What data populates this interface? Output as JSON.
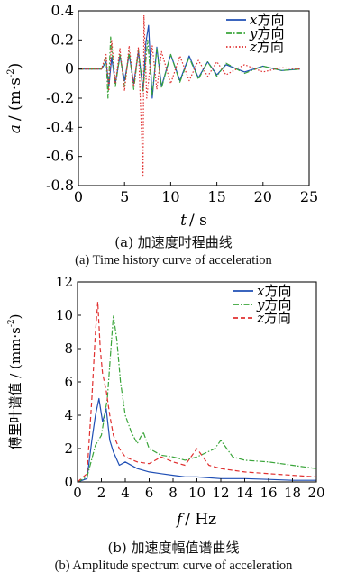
{
  "chart_data": [
    {
      "type": "line",
      "caption_cn": "(a)  加速度时程曲线",
      "caption_en": "(a)  Time history curve of acceleration",
      "xlabel_var": "t",
      "xlabel_unit": "/ s",
      "ylabel_var": "a",
      "ylabel_unit": "/ (m·s",
      "ylabel_exp": "-2",
      "xlim": [
        0,
        25
      ],
      "ylim": [
        -0.8,
        0.4
      ],
      "xticks": [
        "0",
        "5",
        "10",
        "15",
        "20",
        "25"
      ],
      "yticks": [
        "0.4",
        "0.2",
        "0",
        "-0.2",
        "-0.4",
        "-0.6",
        "-0.8"
      ],
      "legend_position": "top-right",
      "series": [
        {
          "name": "x",
          "suffix": "方向",
          "color": "#1f4fb5",
          "dash": "solid",
          "values": [
            [
              0,
              0
            ],
            [
              2.5,
              0
            ],
            [
              3,
              0.05
            ],
            [
              3.3,
              -0.12
            ],
            [
              3.6,
              0.08
            ],
            [
              4,
              -0.1
            ],
            [
              4.5,
              0.09
            ],
            [
              5,
              -0.08
            ],
            [
              5.5,
              0.1
            ],
            [
              6,
              -0.1
            ],
            [
              6.5,
              0.12
            ],
            [
              7,
              -0.15
            ],
            [
              7.3,
              0.18
            ],
            [
              7.6,
              0.3
            ],
            [
              8,
              -0.2
            ],
            [
              8.5,
              0.15
            ],
            [
              9,
              -0.12
            ],
            [
              10,
              0.1
            ],
            [
              11,
              -0.08
            ],
            [
              12,
              0.09
            ],
            [
              13,
              -0.06
            ],
            [
              14,
              0.05
            ],
            [
              15,
              -0.04
            ],
            [
              16,
              0.03
            ],
            [
              18,
              -0.02
            ],
            [
              20,
              0.02
            ],
            [
              22,
              -0.01
            ],
            [
              24,
              0
            ]
          ]
        },
        {
          "name": "y",
          "suffix": "方向",
          "color": "#3aa53a",
          "dash": "dashdot",
          "values": [
            [
              0,
              0
            ],
            [
              2.5,
              0
            ],
            [
              3,
              0.08
            ],
            [
              3.2,
              -0.2
            ],
            [
              3.5,
              0.22
            ],
            [
              4,
              -0.12
            ],
            [
              4.5,
              0.1
            ],
            [
              5,
              -0.12
            ],
            [
              5.5,
              0.12
            ],
            [
              6,
              -0.14
            ],
            [
              6.5,
              0.13
            ],
            [
              7,
              -0.15
            ],
            [
              7.5,
              0.2
            ],
            [
              8,
              -0.18
            ],
            [
              8.5,
              0.14
            ],
            [
              9,
              -0.13
            ],
            [
              10,
              0.1
            ],
            [
              11,
              -0.09
            ],
            [
              12,
              0.08
            ],
            [
              13,
              -0.07
            ],
            [
              14,
              0.05
            ],
            [
              15,
              -0.05
            ],
            [
              16,
              0.04
            ],
            [
              18,
              -0.03
            ],
            [
              20,
              0.02
            ],
            [
              22,
              -0.01
            ],
            [
              24,
              0
            ]
          ]
        },
        {
          "name": "z",
          "suffix": "方向",
          "color": "#e03030",
          "dash": "dotted",
          "values": [
            [
              0,
              0
            ],
            [
              2.5,
              0
            ],
            [
              3,
              0.1
            ],
            [
              3.3,
              -0.15
            ],
            [
              3.6,
              0.2
            ],
            [
              4,
              -0.1
            ],
            [
              4.5,
              0.14
            ],
            [
              5,
              -0.15
            ],
            [
              5.5,
              0.16
            ],
            [
              6,
              -0.12
            ],
            [
              6.5,
              0.15
            ],
            [
              7,
              -0.73
            ],
            [
              7.1,
              0.37
            ],
            [
              7.4,
              -0.2
            ],
            [
              8,
              0.16
            ],
            [
              8.5,
              -0.14
            ],
            [
              9,
              0.12
            ],
            [
              10,
              -0.1
            ],
            [
              11,
              0.09
            ],
            [
              12,
              -0.08
            ],
            [
              13,
              0.06
            ],
            [
              14,
              -0.05
            ],
            [
              15,
              0.05
            ],
            [
              16,
              -0.04
            ],
            [
              18,
              0.03
            ],
            [
              20,
              -0.02
            ],
            [
              22,
              0.01
            ],
            [
              24,
              0
            ]
          ]
        }
      ]
    },
    {
      "type": "line",
      "caption_cn": "(b)  加速度幅值谱曲线",
      "caption_en": "(b)  Amplitude spectrum curve of acceleration",
      "xlabel_var": "f",
      "xlabel_unit": "/ Hz",
      "ylabel_text": "傅里叶谱值 / (mm·s",
      "ylabel_exp": "-2",
      "ylabel_close": ")",
      "xlim": [
        0,
        20
      ],
      "ylim": [
        0,
        12
      ],
      "xticks": [
        "0",
        "2",
        "4",
        "6",
        "8",
        "10",
        "12",
        "14",
        "16",
        "18",
        "20"
      ],
      "yticks": [
        "12",
        "10",
        "8",
        "6",
        "4",
        "2",
        "0"
      ],
      "legend_position": "top-right",
      "series": [
        {
          "name": "x",
          "suffix": "方向",
          "color": "#1f4fb5",
          "dash": "solid",
          "values": [
            [
              0,
              0
            ],
            [
              0.8,
              0.2
            ],
            [
              1.2,
              2.5
            ],
            [
              1.5,
              4
            ],
            [
              1.8,
              5
            ],
            [
              2.1,
              3.6
            ],
            [
              2.4,
              4.4
            ],
            [
              2.7,
              2.5
            ],
            [
              3,
              1.8
            ],
            [
              3.5,
              1
            ],
            [
              4,
              1.2
            ],
            [
              5,
              0.8
            ],
            [
              6,
              0.6
            ],
            [
              7,
              0.5
            ],
            [
              8,
              0.4
            ],
            [
              9,
              0.3
            ],
            [
              10,
              0.3
            ],
            [
              12,
              0.2
            ],
            [
              14,
              0.2
            ],
            [
              16,
              0.15
            ],
            [
              18,
              0.1
            ],
            [
              20,
              0.1
            ]
          ]
        },
        {
          "name": "y",
          "suffix": "方向",
          "color": "#3aa53a",
          "dash": "dashdot",
          "values": [
            [
              0,
              0
            ],
            [
              0.8,
              0.3
            ],
            [
              1.5,
              2.2
            ],
            [
              2,
              2.8
            ],
            [
              2.5,
              5
            ],
            [
              2.8,
              8
            ],
            [
              3,
              10
            ],
            [
              3.3,
              8.5
            ],
            [
              3.6,
              6
            ],
            [
              4,
              4
            ],
            [
              4.5,
              3
            ],
            [
              5,
              2.3
            ],
            [
              5.5,
              3
            ],
            [
              6,
              2
            ],
            [
              7,
              1.6
            ],
            [
              8,
              1.5
            ],
            [
              9,
              1.3
            ],
            [
              10,
              1.5
            ],
            [
              11.5,
              2
            ],
            [
              12,
              2.5
            ],
            [
              13,
              1.5
            ],
            [
              14,
              1.3
            ],
            [
              16,
              1.2
            ],
            [
              18,
              1
            ],
            [
              20,
              0.8
            ]
          ]
        },
        {
          "name": "z",
          "suffix": "方向",
          "color": "#e03030",
          "dash": "dashed",
          "values": [
            [
              0,
              0
            ],
            [
              0.8,
              0.5
            ],
            [
              1.2,
              5
            ],
            [
              1.5,
              9
            ],
            [
              1.7,
              10.8
            ],
            [
              1.9,
              8
            ],
            [
              2.1,
              6.5
            ],
            [
              2.4,
              5.5
            ],
            [
              2.7,
              4
            ],
            [
              3,
              2.8
            ],
            [
              3.5,
              2
            ],
            [
              4,
              1.5
            ],
            [
              5,
              1.2
            ],
            [
              6,
              1.1
            ],
            [
              7,
              1.5
            ],
            [
              8,
              1.2
            ],
            [
              9,
              1
            ],
            [
              10,
              2
            ],
            [
              11,
              1
            ],
            [
              12,
              0.8
            ],
            [
              14,
              0.6
            ],
            [
              16,
              0.5
            ],
            [
              18,
              0.4
            ],
            [
              20,
              0.3
            ]
          ]
        }
      ]
    }
  ]
}
